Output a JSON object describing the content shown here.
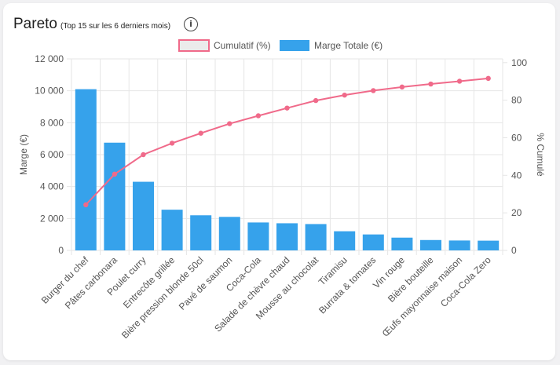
{
  "header": {
    "title": "Pareto",
    "subtitle": "(Top 15 sur les 6 derniers mois)",
    "info_icon": "info-icon"
  },
  "chart_data": {
    "type": "bar",
    "categories": [
      "Burger du chef",
      "Pâtes carbonara",
      "Poulet curry",
      "Entrecôte grillée",
      "Bière pression blonde 50cl",
      "Pavé de saumon",
      "Coca-Cola",
      "Salade de chèvre chaud",
      "Mousse au chocolat",
      "Tiramisu",
      "Burrata & tomates",
      "Vin rouge",
      "Bière bouteille",
      "Œufs mayonnaise maison",
      "Coca-Cola Zero"
    ],
    "series": [
      {
        "name": "Marge Totale (€)",
        "type": "bar",
        "axis": "left",
        "color": "#36a2eb",
        "values": [
          10100,
          6750,
          4300,
          2550,
          2200,
          2100,
          1750,
          1700,
          1650,
          1200,
          1000,
          800,
          650,
          620,
          610
        ]
      },
      {
        "name": "Cumulatif (%)",
        "type": "line",
        "axis": "right",
        "color": "#f06a8a",
        "values": [
          24.3,
          40.6,
          51.0,
          57.1,
          62.4,
          67.5,
          71.7,
          75.8,
          79.8,
          82.7,
          85.1,
          87.0,
          88.6,
          90.1,
          91.6
        ]
      }
    ],
    "ylabel": "Marge (€)",
    "y2label": "% Cumulé",
    "ylim": [
      0,
      12000
    ],
    "y2lim": [
      0,
      102
    ],
    "yticks": [
      "0",
      "2 000",
      "4 000",
      "6 000",
      "8 000",
      "10 000",
      "12 000"
    ],
    "y2ticks": [
      "0",
      "20",
      "40",
      "60",
      "80",
      "100"
    ],
    "grid": true,
    "legend": "top-center"
  }
}
